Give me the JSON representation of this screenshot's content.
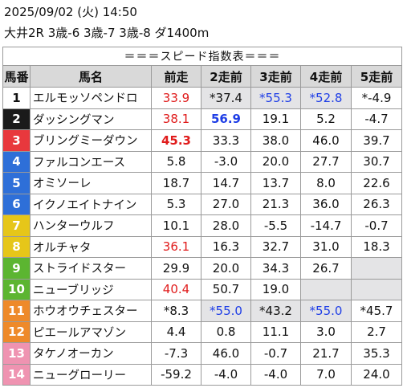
{
  "header": {
    "datetime": "2025/09/02 (火) 14:50",
    "race": "大井2R 3歳-6 3歳-7 3歳-8 ダ1400m"
  },
  "table": {
    "title": "＝＝＝スピード指数表＝＝＝",
    "columns": [
      "馬番",
      "馬名",
      "前走",
      "2走前",
      "3走前",
      "4走前",
      "5走前"
    ],
    "rows": [
      {
        "num": "1",
        "color": "#ffffff",
        "text": "#111111",
        "name": "エルモッソペンドロ",
        "cells": [
          {
            "v": "33.9",
            "c": "red"
          },
          {
            "v": "*37.4",
            "bg": "e"
          },
          {
            "v": "*55.3",
            "c": "blue",
            "bg": "e"
          },
          {
            "v": "*52.8",
            "c": "blue",
            "bg": "e"
          },
          {
            "v": "*-4.9"
          }
        ]
      },
      {
        "num": "2",
        "color": "#1a1a1a",
        "text": "#ffffff",
        "name": "ダッシングマン",
        "cells": [
          {
            "v": "38.1",
            "c": "red"
          },
          {
            "v": "56.9",
            "c": "blue",
            "b": true
          },
          {
            "v": "19.1"
          },
          {
            "v": "5.2"
          },
          {
            "v": "-4.7"
          }
        ]
      },
      {
        "num": "3",
        "color": "#e8383d",
        "text": "#ffffff",
        "name": "ブリングミーダウン",
        "cells": [
          {
            "v": "45.3",
            "c": "red",
            "b": true
          },
          {
            "v": "33.3"
          },
          {
            "v": "38.0"
          },
          {
            "v": "46.0"
          },
          {
            "v": "39.7"
          }
        ]
      },
      {
        "num": "4",
        "color": "#2e6fd8",
        "text": "#ffffff",
        "name": "ファルコンエース",
        "cells": [
          {
            "v": "5.8"
          },
          {
            "v": "-3.0"
          },
          {
            "v": "20.0"
          },
          {
            "v": "27.7"
          },
          {
            "v": "30.7"
          }
        ]
      },
      {
        "num": "5",
        "color": "#2e6fd8",
        "text": "#ffffff",
        "name": "オミソーレ",
        "cells": [
          {
            "v": "18.7"
          },
          {
            "v": "14.7"
          },
          {
            "v": "13.7"
          },
          {
            "v": "8.0"
          },
          {
            "v": "22.6"
          }
        ]
      },
      {
        "num": "6",
        "color": "#2e6fd8",
        "text": "#ffffff",
        "name": "イクノエイトナイン",
        "cells": [
          {
            "v": "5.3"
          },
          {
            "v": "27.0"
          },
          {
            "v": "21.3"
          },
          {
            "v": "36.0"
          },
          {
            "v": "26.3"
          }
        ]
      },
      {
        "num": "7",
        "color": "#e6c619",
        "text": "#ffffff",
        "name": "ハンターウルフ",
        "cells": [
          {
            "v": "10.1"
          },
          {
            "v": "28.0"
          },
          {
            "v": "-5.5"
          },
          {
            "v": "-14.7"
          },
          {
            "v": "-0.7"
          }
        ]
      },
      {
        "num": "8",
        "color": "#e6c619",
        "text": "#ffffff",
        "name": "オルチャタ",
        "cells": [
          {
            "v": "36.1",
            "c": "red"
          },
          {
            "v": "16.3"
          },
          {
            "v": "32.7"
          },
          {
            "v": "31.0"
          },
          {
            "v": "18.3"
          }
        ]
      },
      {
        "num": "9",
        "color": "#5cb531",
        "text": "#ffffff",
        "name": "ストライドスター",
        "cells": [
          {
            "v": "29.9"
          },
          {
            "v": "20.0"
          },
          {
            "v": "34.3"
          },
          {
            "v": "26.7"
          },
          {
            "v": "",
            "bg": "e"
          }
        ]
      },
      {
        "num": "10",
        "color": "#5cb531",
        "text": "#ffffff",
        "name": "ニューブリッジ",
        "cells": [
          {
            "v": "40.4",
            "c": "red"
          },
          {
            "v": "50.7"
          },
          {
            "v": "19.0"
          },
          {
            "v": "",
            "bg": "e"
          },
          {
            "v": "",
            "bg": "e"
          }
        ]
      },
      {
        "num": "11",
        "color": "#ee8a2a",
        "text": "#ffffff",
        "name": "ホウオウチェスター",
        "cells": [
          {
            "v": "*8.3"
          },
          {
            "v": "*55.0",
            "c": "blue",
            "bg": "e"
          },
          {
            "v": "*43.2",
            "bg": "e"
          },
          {
            "v": "*55.0",
            "c": "blue",
            "bg": "e"
          },
          {
            "v": "*45.7"
          }
        ]
      },
      {
        "num": "12",
        "color": "#ee8a2a",
        "text": "#ffffff",
        "name": "ピエールアマゾン",
        "cells": [
          {
            "v": "4.4"
          },
          {
            "v": "0.8"
          },
          {
            "v": "11.1"
          },
          {
            "v": "3.0"
          },
          {
            "v": "2.7"
          }
        ]
      },
      {
        "num": "13",
        "color": "#ef93b1",
        "text": "#ffffff",
        "name": "タケノオーカン",
        "cells": [
          {
            "v": "-7.3"
          },
          {
            "v": "46.0"
          },
          {
            "v": "-0.7"
          },
          {
            "v": "21.7"
          },
          {
            "v": "35.3"
          }
        ]
      },
      {
        "num": "14",
        "color": "#ef93b1",
        "text": "#ffffff",
        "name": "ニューグローリー",
        "cells": [
          {
            "v": "-59.2"
          },
          {
            "v": "-4.0"
          },
          {
            "v": "-4.0"
          },
          {
            "v": "7.0"
          },
          {
            "v": "24.0"
          }
        ]
      }
    ]
  }
}
